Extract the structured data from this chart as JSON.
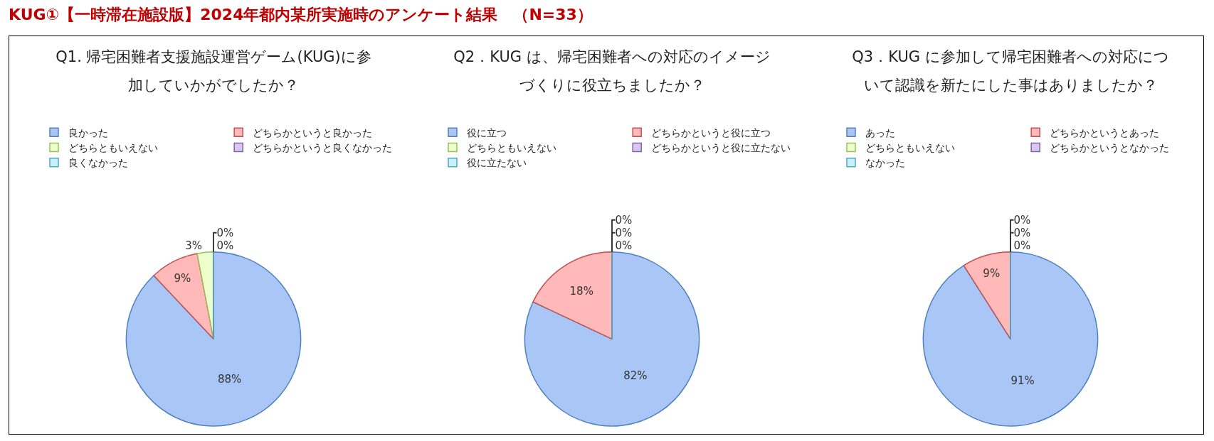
{
  "chart_data": [
    {
      "type": "pie",
      "title": "Q1. 帰宅困難者支援施設運営ゲーム(KUG)に参加していかがでしたか？",
      "annotations": [
        "KUG①【一時滞在施設版】2024年都内某所実施時のアンケート結果　（N=33）"
      ],
      "categories": [
        "良かった",
        "どちらかというと良かった",
        "どちらともいえない",
        "どちらかというと良くなかった",
        "良くなかった"
      ],
      "values": [
        88,
        9,
        3,
        0,
        0
      ],
      "value_labels": [
        "88%",
        "9%",
        "3%",
        "0%",
        "0%"
      ],
      "colors": [
        "#a9c6f7",
        "#ffb9b9",
        "#ecffcc",
        "#d8c8f0",
        "#c8f0fa"
      ],
      "legend": "top"
    },
    {
      "type": "pie",
      "title": "Q2．KUG は、帰宅困難者への対応のイメージづくりに役立ちましたか？",
      "categories": [
        "役に立つ",
        "どちらかというと役に立つ",
        "どちらともいえない",
        "どちらかというと役に立たない",
        "役に立たない"
      ],
      "values": [
        82,
        18,
        0,
        0,
        0
      ],
      "value_labels": [
        "82%",
        "18%",
        "0%",
        "0%",
        "0%"
      ],
      "colors": [
        "#a9c6f7",
        "#ffb9b9",
        "#ecffcc",
        "#d8c8f0",
        "#c8f0fa"
      ],
      "legend": "top"
    },
    {
      "type": "pie",
      "title": "Q3．KUG に参加して帰宅困難者への対応について認識を新たにした事はありましたか？",
      "categories": [
        "あった",
        "どちらかというとあった",
        "どちらともいえない",
        "どちらかというとなかった",
        "なかった"
      ],
      "values": [
        91,
        9,
        0,
        0,
        0
      ],
      "value_labels": [
        "91%",
        "9%",
        "0%",
        "0%",
        "0%"
      ],
      "colors": [
        "#a9c6f7",
        "#ffb9b9",
        "#ecffcc",
        "#d8c8f0",
        "#c8f0fa"
      ],
      "legend": "top"
    }
  ]
}
